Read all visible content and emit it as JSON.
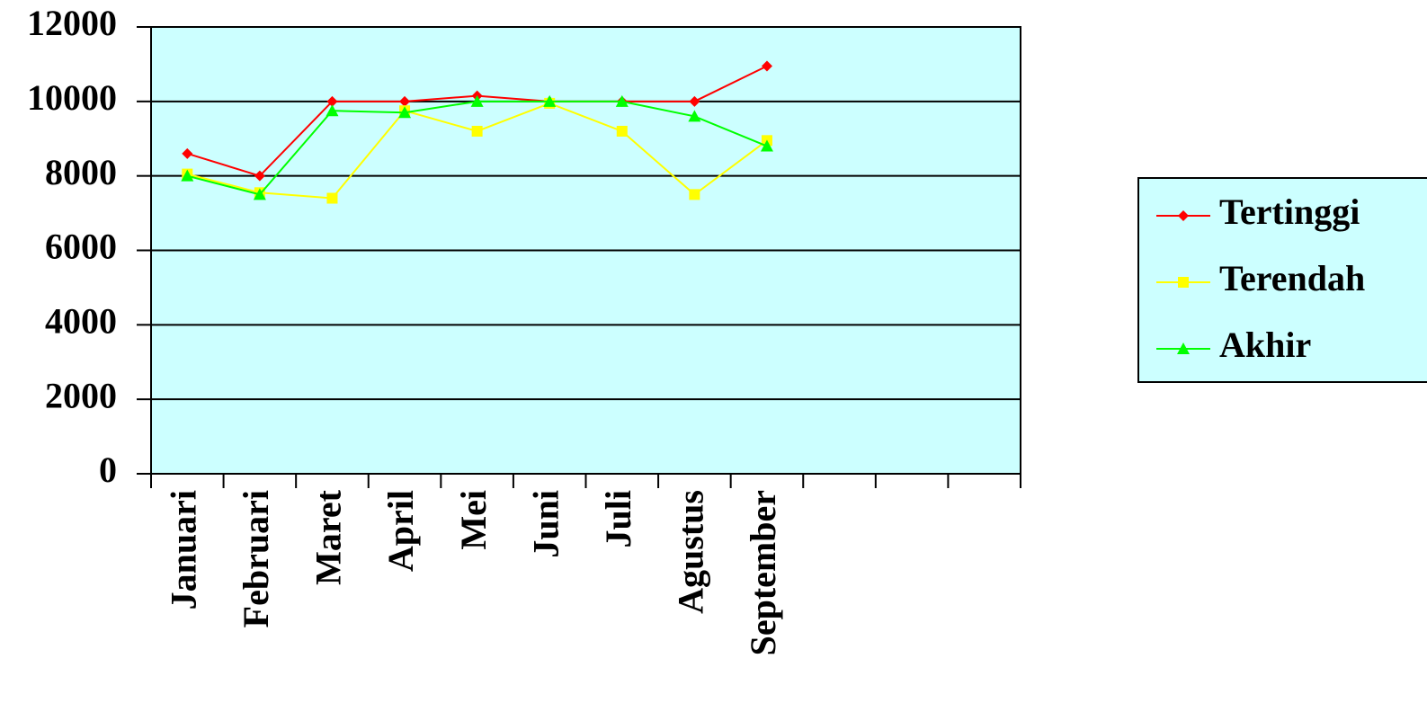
{
  "chart_data": {
    "type": "line",
    "categories": [
      "Januari",
      "Februari",
      "Maret",
      "April",
      "Mei",
      "Juni",
      "Juli",
      "Agustus",
      "September",
      null,
      null,
      null
    ],
    "series": [
      {
        "name": "Tertinggi",
        "color": "#ff0000",
        "marker": "diamond",
        "values": [
          8600,
          8000,
          10000,
          10000,
          10150,
          10000,
          10000,
          10000,
          10950,
          null,
          null,
          null
        ]
      },
      {
        "name": "Terendah",
        "color": "#ffff00",
        "marker": "square",
        "values": [
          8050,
          7550,
          7400,
          9750,
          9200,
          9950,
          9200,
          7500,
          8950,
          null,
          null,
          null
        ]
      },
      {
        "name": "Akhir",
        "color": "#00ff00",
        "marker": "triangle",
        "values": [
          8000,
          7500,
          9750,
          9700,
          10000,
          10000,
          10000,
          9600,
          8800,
          null,
          null,
          null
        ]
      }
    ],
    "ylim": [
      0,
      12000
    ],
    "yticks": [
      0,
      2000,
      4000,
      6000,
      8000,
      10000,
      12000
    ],
    "grid": true,
    "legend": "right",
    "plot_background": "#ccffff"
  }
}
